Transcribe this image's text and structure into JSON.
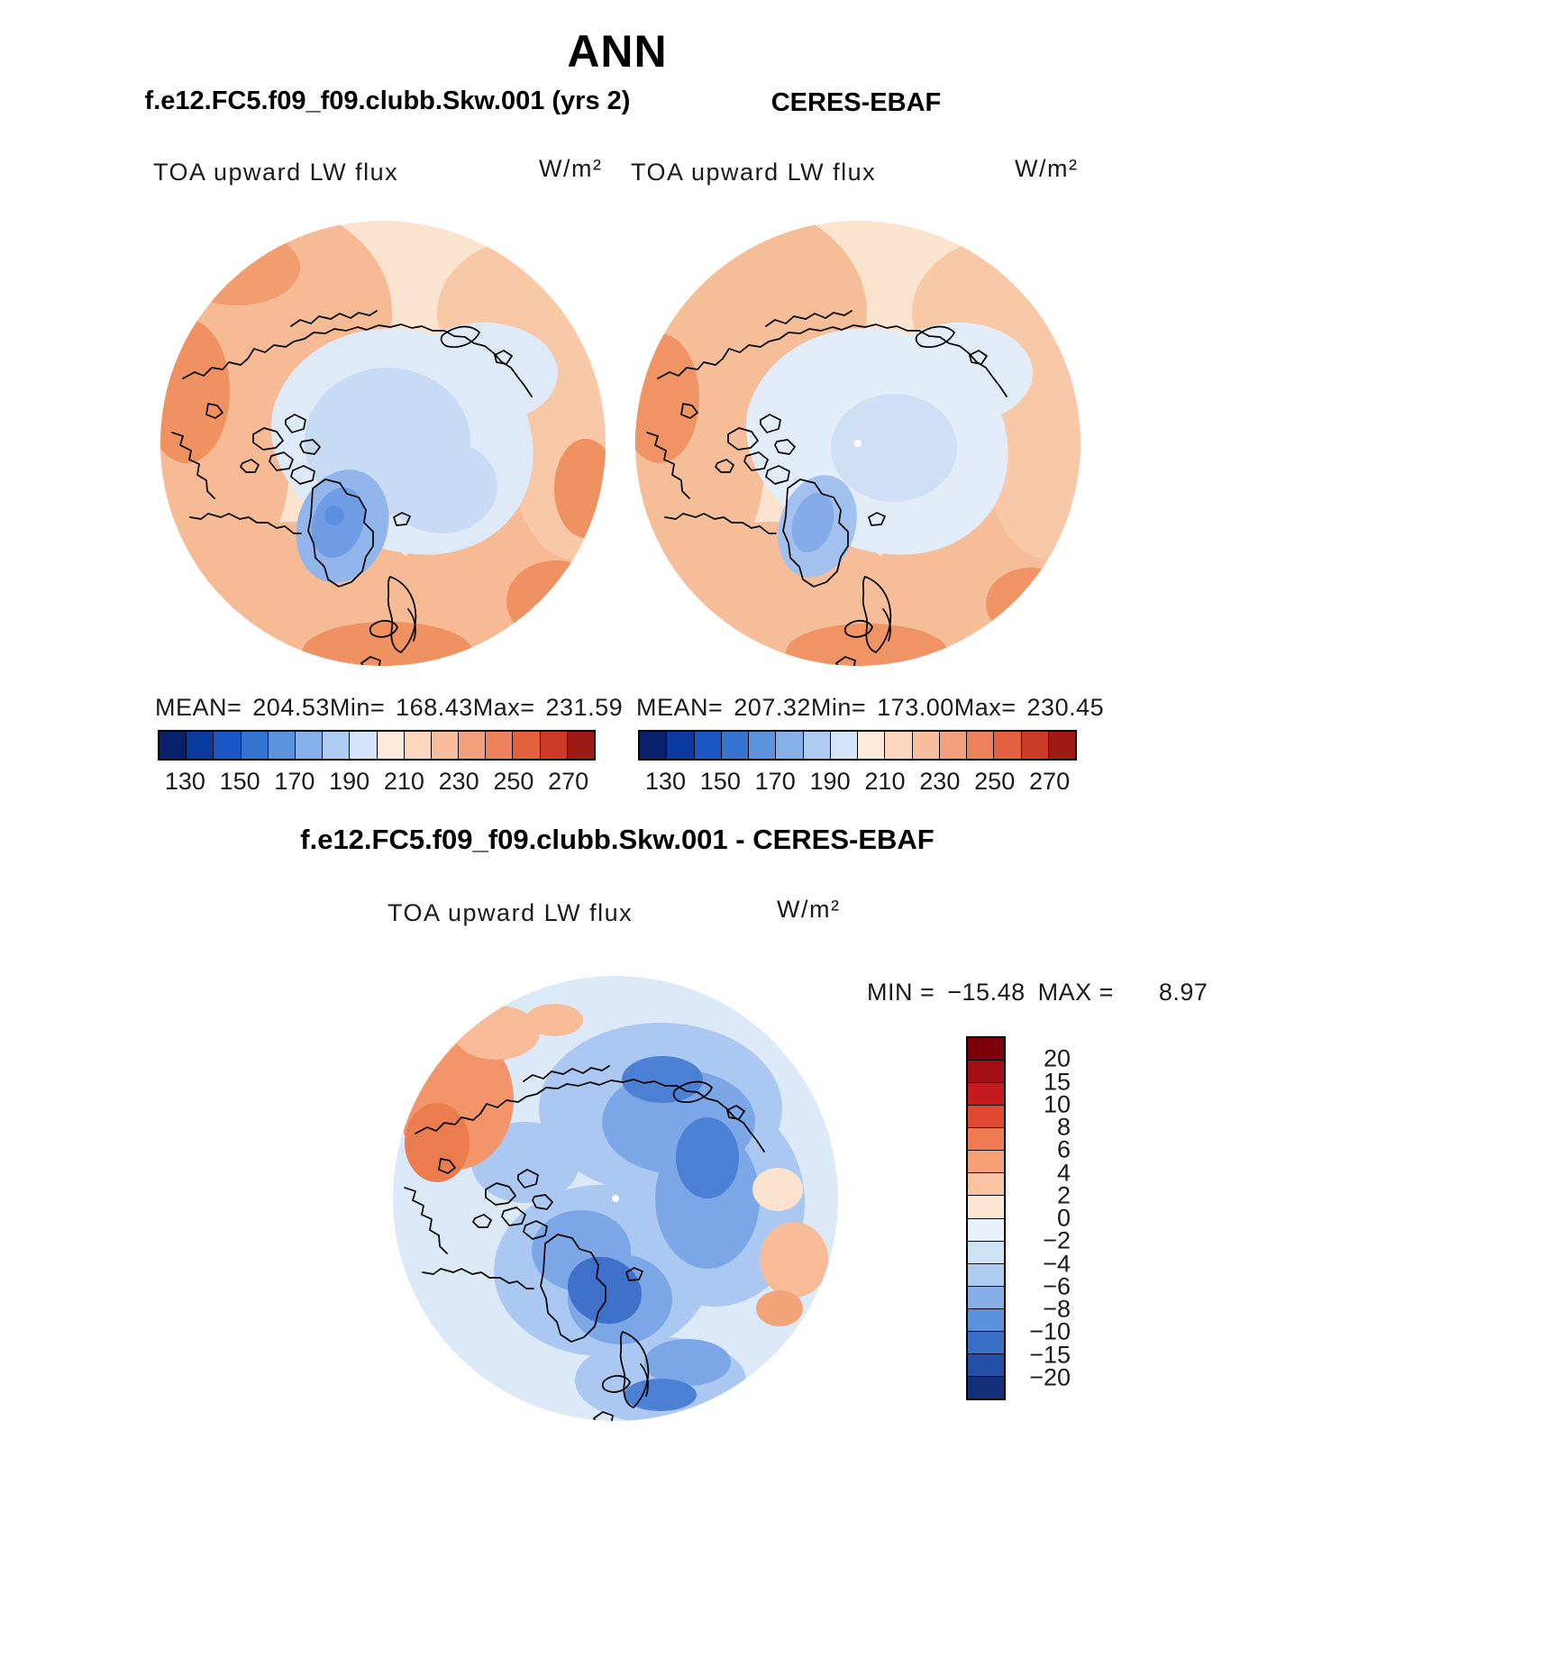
{
  "title": "ANN",
  "left_panel": {
    "subtitle": "f.e12.FC5.f09_f09.clubb.Skw.001 (yrs 2)",
    "field_label": "TOA upward LW flux",
    "units": "W/m²",
    "stats": {
      "mean_label": "MEAN=",
      "mean": "204.53",
      "min_label": "Min=",
      "min": "168.43",
      "max_label": "Max=",
      "max": "231.59"
    }
  },
  "right_panel": {
    "subtitle": "CERES-EBAF",
    "field_label": "TOA upward LW flux",
    "units": "W/m²",
    "stats": {
      "mean_label": "MEAN=",
      "mean": "207.32",
      "min_label": "Min=",
      "min": "173.00",
      "max_label": "Max=",
      "max": "230.45"
    }
  },
  "flux_colorbar": {
    "ticks": [
      "130",
      "150",
      "170",
      "190",
      "210",
      "230",
      "250",
      "270"
    ],
    "colors": [
      "#08206b",
      "#0a3a9e",
      "#1b57c4",
      "#3573d0",
      "#5b93dd",
      "#85b1e8",
      "#aecbf1",
      "#d3e3f8",
      "#fdeadb",
      "#fbd6bc",
      "#f8bd9b",
      "#f4a07c",
      "#ee825c",
      "#e4613f",
      "#cb3b27",
      "#9e1a14"
    ]
  },
  "diff_panel": {
    "subtitle": "f.e12.FC5.f09_f09.clubb.Skw.001 - CERES-EBAF",
    "field_label": "TOA upward LW flux",
    "units": "W/m²",
    "min_label": "MIN =",
    "min": "−15.48",
    "max_label": "MAX =",
    "max": "8.97"
  },
  "diff_colorbar": {
    "labels": [
      "20",
      "15",
      "10",
      "8",
      "6",
      "4",
      "2",
      "0",
      "−2",
      "−4",
      "−6",
      "−8",
      "−10",
      "−15",
      "−20"
    ],
    "colors": [
      "#7f000d",
      "#a30f15",
      "#c21c1f",
      "#dd4a30",
      "#ef7b52",
      "#f6a077",
      "#fac4a2",
      "#fde7d2",
      "#e9f1fb",
      "#cfe1f6",
      "#aecbf0",
      "#85afe6",
      "#5b90da",
      "#3a6fc8",
      "#234fa5",
      "#122f7a"
    ]
  },
  "chart_data": {
    "type": "heatmap",
    "title": "ANN",
    "projection": "north polar stereographic",
    "variable": "TOA upward LW flux",
    "units": "W/m²",
    "panels": [
      {
        "name": "f.e12.FC5.f09_f09.clubb.Skw.001 (yrs 2)",
        "role": "model",
        "mean": 204.53,
        "min": 168.43,
        "max": 231.59,
        "colorbar_ticks": [
          130,
          150,
          170,
          190,
          210,
          230,
          250,
          270
        ]
      },
      {
        "name": "CERES-EBAF",
        "role": "observations",
        "mean": 207.32,
        "min": 173.0,
        "max": 230.45,
        "colorbar_ticks": [
          130,
          150,
          170,
          190,
          210,
          230,
          250,
          270
        ]
      },
      {
        "name": "f.e12.FC5.f09_f09.clubb.Skw.001 - CERES-EBAF",
        "role": "difference",
        "min": -15.48,
        "max": 8.97,
        "colorbar_levels": [
          20,
          15,
          10,
          8,
          6,
          4,
          2,
          0,
          -2,
          -4,
          -6,
          -8,
          -10,
          -15,
          -20
        ]
      }
    ],
    "legend_position": "horizontal below each top panel; vertical right of difference panel",
    "grid": false
  }
}
